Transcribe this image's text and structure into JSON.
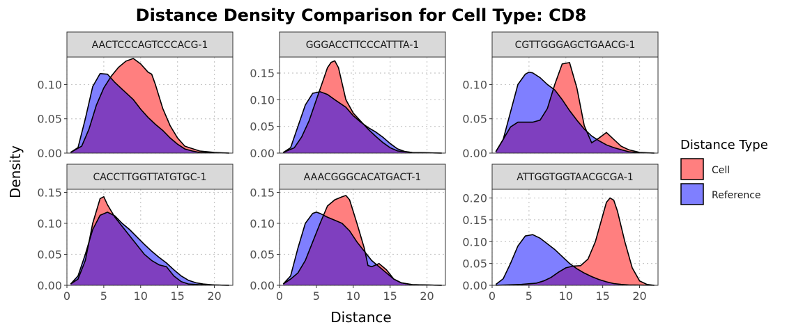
{
  "chart_data": {
    "type": "area",
    "title": "Distance Density Comparison for Cell Type: CD8",
    "xlabel": "Distance",
    "ylabel": "Density",
    "xlim": [
      0,
      22.5
    ],
    "x_ticks": [
      0,
      5,
      10,
      15,
      20
    ],
    "grid": true,
    "legend": {
      "title": "Distance Type",
      "position": "right",
      "entries": [
        {
          "name": "Cell",
          "color": "#FF7F7F"
        },
        {
          "name": "Reference",
          "color": "#7F7FFF"
        }
      ]
    },
    "overlap_color": "#7F3FBF",
    "panels": [
      {
        "strip": "AACTCCCAGTCCCACG-1",
        "ylim": [
          0,
          0.14
        ],
        "y_ticks": [
          0.0,
          0.05,
          0.1
        ],
        "y_tick_labels": [
          "0.00",
          "0.05",
          "0.10"
        ],
        "series": [
          {
            "name": "Cell",
            "x": [
              0.5,
              2,
              3,
              4,
              5,
              6,
              7,
              8,
              9,
              10,
              11,
              11.5,
              12,
              13,
              14,
              15,
              16,
              18,
              20,
              22
            ],
            "y": [
              0.001,
              0.01,
              0.035,
              0.07,
              0.095,
              0.112,
              0.125,
              0.134,
              0.138,
              0.13,
              0.118,
              0.115,
              0.1,
              0.065,
              0.04,
              0.022,
              0.01,
              0.003,
              0.001,
              0
            ]
          },
          {
            "name": "Reference",
            "x": [
              0.5,
              1.5,
              2.5,
              3.5,
              4.5,
              5.5,
              6.5,
              7.5,
              9,
              10,
              11,
              12,
              13,
              14,
              15,
              16,
              17,
              18,
              20,
              22
            ],
            "y": [
              0.001,
              0.008,
              0.05,
              0.097,
              0.116,
              0.115,
              0.103,
              0.093,
              0.078,
              0.064,
              0.052,
              0.042,
              0.033,
              0.022,
              0.013,
              0.006,
              0.003,
              0.001,
              0.0005,
              0
            ]
          }
        ]
      },
      {
        "strip": "GGGACCTTCCCATTTA-1",
        "ylim": [
          0,
          0.18
        ],
        "y_ticks": [
          0.0,
          0.05,
          0.1,
          0.15
        ],
        "y_tick_labels": [
          "0.00",
          "0.05",
          "0.10",
          "0.15"
        ],
        "series": [
          {
            "name": "Cell",
            "x": [
              0.5,
              2,
              3,
              4,
              5,
              6,
              6.5,
              7,
              7.5,
              8,
              9,
              10,
              11,
              12,
              13,
              14,
              15,
              16,
              18,
              22
            ],
            "y": [
              0.001,
              0.01,
              0.03,
              0.06,
              0.1,
              0.14,
              0.16,
              0.17,
              0.173,
              0.16,
              0.1,
              0.075,
              0.06,
              0.045,
              0.032,
              0.02,
              0.01,
              0.004,
              0.001,
              0
            ]
          },
          {
            "name": "Reference",
            "x": [
              0.5,
              1.5,
              2.5,
              3.5,
              4.5,
              5.5,
              6.5,
              7.5,
              9,
              10,
              11,
              12,
              13,
              14,
              15,
              16,
              17,
              18,
              20,
              22
            ],
            "y": [
              0.001,
              0.01,
              0.05,
              0.09,
              0.112,
              0.115,
              0.11,
              0.1,
              0.086,
              0.07,
              0.058,
              0.048,
              0.04,
              0.03,
              0.018,
              0.008,
              0.003,
              0.001,
              0.0005,
              0
            ]
          }
        ]
      },
      {
        "strip": "CGTTGGGAGCTGAACG-1",
        "ylim": [
          0,
          0.14
        ],
        "y_ticks": [
          0.0,
          0.05,
          0.1
        ],
        "y_tick_labels": [
          "0.00",
          "0.05",
          "0.10"
        ],
        "series": [
          {
            "name": "Cell",
            "x": [
              0.5,
              1.5,
              2.5,
              3.5,
              4.5,
              5.5,
              6.5,
              7.5,
              8.5,
              9.5,
              10.5,
              11.5,
              12.5,
              13.5,
              14.5,
              15.5,
              16.5,
              17.5,
              18.5,
              20,
              22
            ],
            "y": [
              0.002,
              0.02,
              0.038,
              0.045,
              0.045,
              0.045,
              0.048,
              0.065,
              0.1,
              0.13,
              0.132,
              0.095,
              0.04,
              0.015,
              0.022,
              0.03,
              0.02,
              0.01,
              0.005,
              0.001,
              0
            ]
          },
          {
            "name": "Reference",
            "x": [
              0.5,
              1.5,
              2.5,
              3.5,
              4.5,
              5,
              5.5,
              6.5,
              7.5,
              8.5,
              9.5,
              10.5,
              11.5,
              12.5,
              13.5,
              14.5,
              15.5,
              16.5,
              17.5,
              18.5,
              20,
              22
            ],
            "y": [
              0.002,
              0.02,
              0.06,
              0.1,
              0.115,
              0.118,
              0.117,
              0.11,
              0.1,
              0.092,
              0.078,
              0.062,
              0.048,
              0.035,
              0.025,
              0.018,
              0.012,
              0.008,
              0.005,
              0.002,
              0.0005,
              0
            ]
          }
        ]
      },
      {
        "strip": "CACCTTGGTTATGTGC-1",
        "ylim": [
          0,
          0.155
        ],
        "y_ticks": [
          0.0,
          0.05,
          0.1,
          0.15
        ],
        "y_tick_labels": [
          "0.00",
          "0.05",
          "0.10",
          "0.15"
        ],
        "series": [
          {
            "name": "Cell",
            "x": [
              0.5,
              1.5,
              2.5,
              3.5,
              4.5,
              5,
              5.5,
              6.5,
              7.5,
              8.5,
              9.5,
              10.5,
              11.5,
              12.5,
              13.5,
              14.5,
              15.5,
              16.5,
              18,
              20,
              22
            ],
            "y": [
              0.002,
              0.01,
              0.04,
              0.1,
              0.14,
              0.143,
              0.13,
              0.11,
              0.095,
              0.08,
              0.065,
              0.05,
              0.04,
              0.033,
              0.03,
              0.015,
              0.006,
              0.002,
              0.001,
              0.0005,
              0
            ]
          },
          {
            "name": "Reference",
            "x": [
              0.5,
              1.5,
              2.5,
              3.5,
              4.5,
              5.5,
              6.5,
              7.5,
              8.5,
              9.5,
              10.5,
              11.5,
              12.5,
              13.5,
              14.5,
              15.5,
              16.5,
              17.5,
              18.5,
              20,
              22
            ],
            "y": [
              0.002,
              0.015,
              0.05,
              0.09,
              0.113,
              0.118,
              0.112,
              0.1,
              0.09,
              0.078,
              0.066,
              0.055,
              0.045,
              0.036,
              0.025,
              0.015,
              0.008,
              0.004,
              0.002,
              0.0005,
              0
            ]
          }
        ]
      },
      {
        "strip": "AAACGGGCACATGACT-1",
        "ylim": [
          0,
          0.155
        ],
        "y_ticks": [
          0.0,
          0.05,
          0.1,
          0.15
        ],
        "y_tick_labels": [
          "0.00",
          "0.05",
          "0.10",
          "0.15"
        ],
        "series": [
          {
            "name": "Cell",
            "x": [
              0.5,
              1.5,
              2.5,
              3.5,
              4.5,
              5.5,
              6.5,
              7.5,
              8.5,
              9,
              9.5,
              10.5,
              11.5,
              12,
              12.5,
              13.5,
              14.5,
              15.5,
              16.5,
              18,
              20,
              22
            ],
            "y": [
              0.002,
              0.01,
              0.02,
              0.04,
              0.07,
              0.1,
              0.128,
              0.138,
              0.143,
              0.145,
              0.138,
              0.1,
              0.06,
              0.032,
              0.03,
              0.035,
              0.025,
              0.01,
              0.004,
              0.001,
              0.0005,
              0
            ]
          },
          {
            "name": "Reference",
            "x": [
              0.5,
              1.5,
              2.5,
              3.5,
              4.5,
              5,
              5.5,
              6.5,
              7.5,
              8.5,
              9.5,
              10.5,
              11.5,
              12.5,
              13.5,
              14.5,
              15.5,
              16.5,
              18,
              20,
              22
            ],
            "y": [
              0.002,
              0.015,
              0.06,
              0.1,
              0.116,
              0.118,
              0.116,
              0.11,
              0.105,
              0.1,
              0.088,
              0.07,
              0.055,
              0.04,
              0.03,
              0.02,
              0.01,
              0.004,
              0.001,
              0.0005,
              0
            ]
          }
        ]
      },
      {
        "strip": "ATTGGTGGTAACGCGA-1",
        "ylim": [
          0,
          0.22
        ],
        "y_ticks": [
          0.0,
          0.05,
          0.1,
          0.15,
          0.2
        ],
        "y_tick_labels": [
          "0.00",
          "0.05",
          "0.10",
          "0.15",
          "0.20"
        ],
        "series": [
          {
            "name": "Cell",
            "x": [
              0.5,
              2,
              4,
              6,
              7,
              8,
              9,
              10,
              11,
              12,
              13,
              14,
              15,
              15.5,
              16,
              16.5,
              17,
              18,
              19,
              20,
              21,
              22
            ],
            "y": [
              0,
              0.001,
              0.002,
              0.005,
              0.01,
              0.018,
              0.03,
              0.04,
              0.044,
              0.045,
              0.06,
              0.1,
              0.16,
              0.19,
              0.2,
              0.195,
              0.17,
              0.1,
              0.04,
              0.01,
              0.002,
              0
            ]
          },
          {
            "name": "Reference",
            "x": [
              0.5,
              1.5,
              2.5,
              3.5,
              4.5,
              5.5,
              6.5,
              7.5,
              8.5,
              9.5,
              10.5,
              11.5,
              12.5,
              13.5,
              14.5,
              15.5,
              16.5,
              17.5,
              18.5,
              20,
              22
            ],
            "y": [
              0.002,
              0.015,
              0.05,
              0.09,
              0.113,
              0.116,
              0.108,
              0.095,
              0.082,
              0.066,
              0.05,
              0.038,
              0.028,
              0.02,
              0.013,
              0.008,
              0.004,
              0.002,
              0.001,
              0.0005,
              0
            ]
          }
        ]
      }
    ]
  }
}
